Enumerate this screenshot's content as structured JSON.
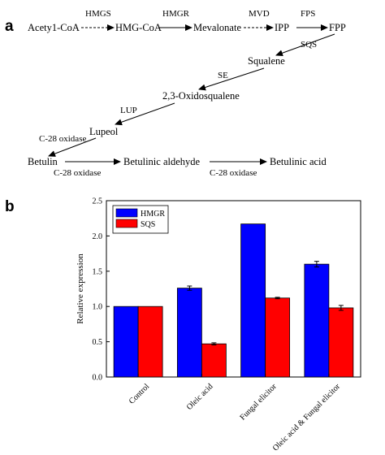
{
  "panel_a": {
    "label": "a",
    "nodes": {
      "acetyl_coa": "Acety1-CoA",
      "hmg_coa": "HMG-CoA",
      "mevalonate": "Mevalonate",
      "ipp": "IPP",
      "fpp": "FPP",
      "squalene": "Squalene",
      "oxidosqualene": "2,3-Oxidosqualene",
      "lupeol": "Lupeol",
      "betulin": "Betulin",
      "betulinic_aldehyde": "Betulinic aldehyde",
      "betulinic_acid": "Betulinic acid"
    },
    "enzymes": {
      "hmgs": "HMGS",
      "hmgr": "HMGR",
      "mvd": "MVD",
      "fps": "FPS",
      "sqs": "SQS",
      "se": "SE",
      "lup": "LUP",
      "c28_1": "C-28 oxidase",
      "c28_2": "C-28 oxidase",
      "c28_3": "C-28 oxidase"
    }
  },
  "panel_b": {
    "label": "b"
  },
  "chart_data": {
    "type": "bar",
    "title": "",
    "xlabel": "",
    "ylabel": "Relative expression",
    "categories": [
      "Control",
      "Oleic acid",
      "Fungal elicitor",
      "Oleic acid & Fungal elicitor"
    ],
    "series": [
      {
        "name": "HMGR",
        "color": "#0000ff",
        "values": [
          1.0,
          1.26,
          2.17,
          1.6
        ],
        "errors": [
          0.0,
          0.03,
          0.0,
          0.04
        ]
      },
      {
        "name": "SQS",
        "color": "#ff0000",
        "values": [
          1.0,
          0.47,
          1.12,
          0.98
        ],
        "errors": [
          0.0,
          0.015,
          0.01,
          0.035
        ]
      }
    ],
    "ylim": [
      0,
      2.5
    ],
    "yticks": [
      "0.0",
      "0.5",
      "1.0",
      "1.5",
      "2.0",
      "2.5"
    ],
    "legend_position": "top-left",
    "grid": false
  }
}
